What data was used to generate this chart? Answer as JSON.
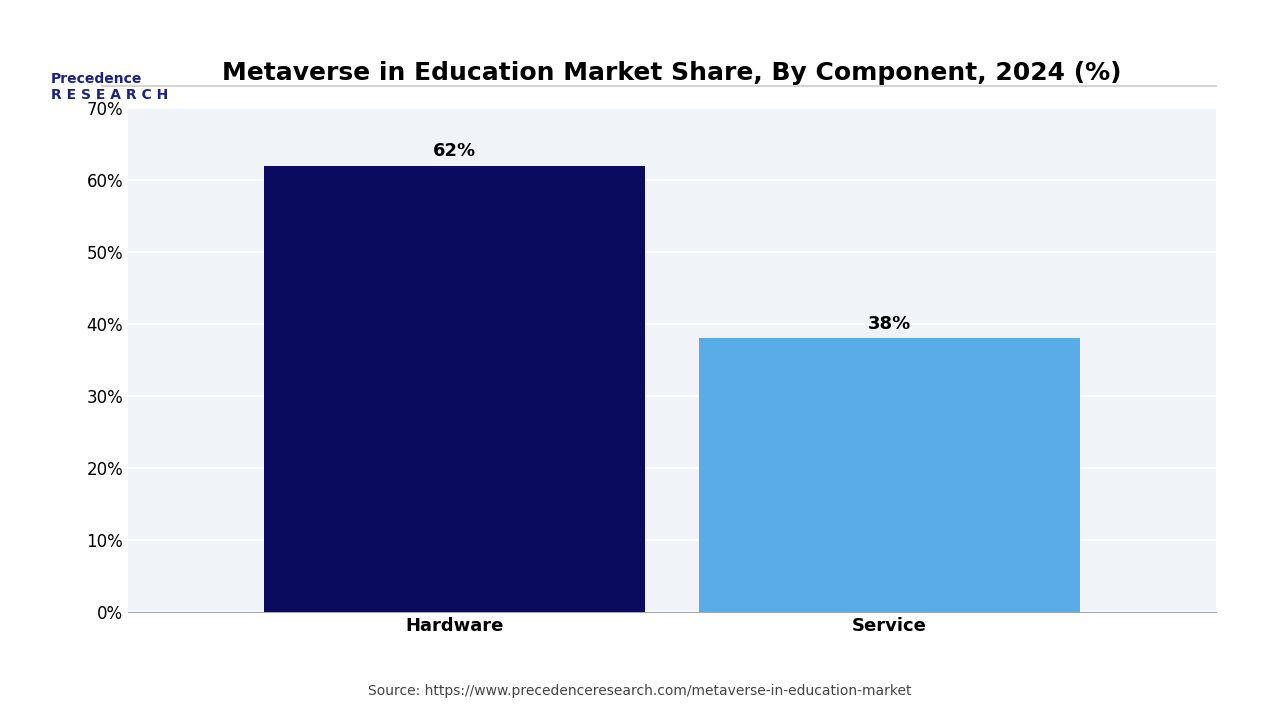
{
  "title": "Metaverse in Education Market Share, By Component, 2024 (%)",
  "categories": [
    "Hardware",
    "Service"
  ],
  "values": [
    62,
    38
  ],
  "bar_colors": [
    "#0a0a5e",
    "#5aace8"
  ],
  "bar_labels": [
    "62%",
    "38%"
  ],
  "ylim": [
    0,
    70
  ],
  "yticks": [
    0,
    10,
    20,
    30,
    40,
    50,
    60,
    70
  ],
  "ytick_labels": [
    "0%",
    "10%",
    "20%",
    "30%",
    "40%",
    "50%",
    "60%",
    "70%"
  ],
  "source_text": "Source: https://www.precedenceresearch.com/metaverse-in-education-market",
  "bg_color": "#ffffff",
  "plot_bg_color": "#f0f4f8",
  "title_fontsize": 18,
  "label_fontsize": 13,
  "tick_fontsize": 12,
  "bar_label_fontsize": 13,
  "source_fontsize": 10,
  "bar_width": 0.35
}
